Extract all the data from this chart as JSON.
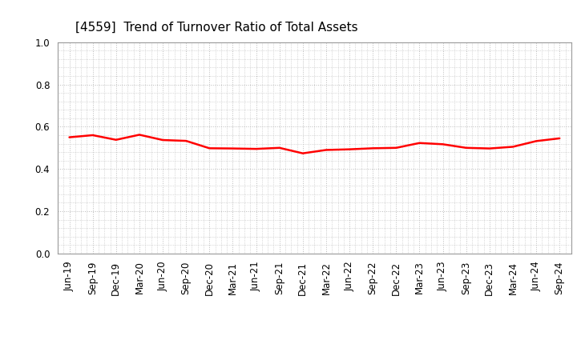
{
  "title": "[4559]  Trend of Turnover Ratio of Total Assets",
  "x_labels": [
    "Jun-19",
    "Sep-19",
    "Dec-19",
    "Mar-20",
    "Jun-20",
    "Sep-20",
    "Dec-20",
    "Mar-21",
    "Jun-21",
    "Sep-21",
    "Dec-21",
    "Mar-22",
    "Jun-22",
    "Sep-22",
    "Dec-22",
    "Mar-23",
    "Jun-23",
    "Sep-23",
    "Dec-23",
    "Mar-24",
    "Jun-24",
    "Sep-24"
  ],
  "y_values": [
    0.55,
    0.56,
    0.538,
    0.562,
    0.537,
    0.533,
    0.498,
    0.497,
    0.495,
    0.5,
    0.474,
    0.49,
    0.493,
    0.498,
    0.5,
    0.523,
    0.517,
    0.5,
    0.497,
    0.505,
    0.532,
    0.545
  ],
  "line_color": "#ff0000",
  "line_width": 1.8,
  "ylim": [
    0.0,
    1.0
  ],
  "yticks": [
    0.0,
    0.2,
    0.4,
    0.6,
    0.8,
    1.0
  ],
  "background_color": "#ffffff",
  "grid_color": "#bbbbbb",
  "title_fontsize": 11,
  "tick_fontsize": 8.5
}
